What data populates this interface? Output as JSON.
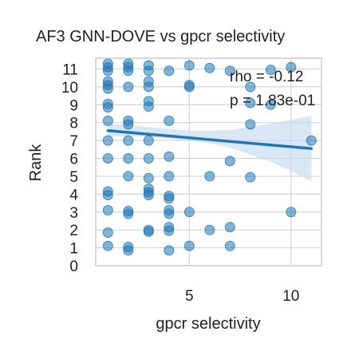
{
  "chart_data": {
    "type": "scatter",
    "title": "AF3 GNN-DOVE vs gpcr selectivity",
    "xlabel": "gpcr selectivity",
    "ylabel": "Rank",
    "xlim": [
      0.4,
      11.5
    ],
    "ylim": [
      0,
      11.6
    ],
    "x_ticks": [
      5,
      10
    ],
    "y_ticks": [
      0,
      1,
      2,
      3,
      4,
      5,
      6,
      7,
      8,
      9,
      10,
      11
    ],
    "grid": true,
    "colors": {
      "points": "#1f77b4",
      "regression_line": "#1f77b4",
      "confidence_band": "#c6dbef"
    },
    "annotations": {
      "rho": "rho = -0.12",
      "p": "p = 1.83e-01"
    },
    "regression": {
      "x_start": 1,
      "y_start": 7.55,
      "x_end": 11,
      "y_end": 6.55
    },
    "confidence_band": {
      "x": [
        1,
        2,
        3,
        4,
        5,
        6,
        7,
        8,
        9,
        10,
        11
      ],
      "upper": [
        7.95,
        7.85,
        7.75,
        7.65,
        7.55,
        7.55,
        7.6,
        7.75,
        7.95,
        8.15,
        8.4
      ],
      "lower": [
        7.2,
        7.25,
        7.2,
        7.1,
        7.0,
        6.85,
        6.6,
        6.2,
        5.8,
        5.3,
        4.7
      ]
    },
    "points": [
      {
        "x": 1,
        "y": 11.3
      },
      {
        "x": 1,
        "y": 11.1
      },
      {
        "x": 1,
        "y": 10.9
      },
      {
        "x": 2,
        "y": 11.3
      },
      {
        "x": 2,
        "y": 11.1
      },
      {
        "x": 2,
        "y": 10.9
      },
      {
        "x": 3,
        "y": 11.2
      },
      {
        "x": 3,
        "y": 10.9
      },
      {
        "x": 4,
        "y": 10.9
      },
      {
        "x": 5,
        "y": 11.2
      },
      {
        "x": 6,
        "y": 11.05
      },
      {
        "x": 7,
        "y": 10.9
      },
      {
        "x": 9,
        "y": 10.95
      },
      {
        "x": 10,
        "y": 11.1
      },
      {
        "x": 1,
        "y": 10.3
      },
      {
        "x": 1,
        "y": 10.1
      },
      {
        "x": 1,
        "y": 9.9
      },
      {
        "x": 2,
        "y": 10.0
      },
      {
        "x": 3,
        "y": 10.3
      },
      {
        "x": 3,
        "y": 10.0
      },
      {
        "x": 5,
        "y": 10.1
      },
      {
        "x": 5,
        "y": 10.0
      },
      {
        "x": 8,
        "y": 10.0
      },
      {
        "x": 1,
        "y": 9.05
      },
      {
        "x": 1,
        "y": 8.85
      },
      {
        "x": 3,
        "y": 9.2
      },
      {
        "x": 3,
        "y": 8.9
      },
      {
        "x": 8,
        "y": 9.1
      },
      {
        "x": 9,
        "y": 9.0
      },
      {
        "x": 1,
        "y": 8.1
      },
      {
        "x": 2,
        "y": 8.1
      },
      {
        "x": 2,
        "y": 7.9
      },
      {
        "x": 4,
        "y": 8.1
      },
      {
        "x": 8,
        "y": 7.9
      },
      {
        "x": 1,
        "y": 7.0
      },
      {
        "x": 2,
        "y": 7.0
      },
      {
        "x": 3,
        "y": 7.0
      },
      {
        "x": 11,
        "y": 7.0
      },
      {
        "x": 1,
        "y": 6.0
      },
      {
        "x": 2,
        "y": 6.0
      },
      {
        "x": 3,
        "y": 6.0
      },
      {
        "x": 4,
        "y": 6.1
      },
      {
        "x": 7,
        "y": 5.85
      },
      {
        "x": 2,
        "y": 5.0
      },
      {
        "x": 3,
        "y": 4.9
      },
      {
        "x": 4,
        "y": 5.0
      },
      {
        "x": 6,
        "y": 5.0
      },
      {
        "x": 8,
        "y": 4.95
      },
      {
        "x": 1,
        "y": 4.15
      },
      {
        "x": 1,
        "y": 3.95
      },
      {
        "x": 3,
        "y": 4.3
      },
      {
        "x": 3,
        "y": 4.1
      },
      {
        "x": 3,
        "y": 3.95
      },
      {
        "x": 4,
        "y": 3.9
      },
      {
        "x": 4,
        "y": 3.75
      },
      {
        "x": 1,
        "y": 3.1
      },
      {
        "x": 2,
        "y": 3.05
      },
      {
        "x": 2,
        "y": 2.9
      },
      {
        "x": 4,
        "y": 3.1
      },
      {
        "x": 4,
        "y": 2.9
      },
      {
        "x": 5,
        "y": 3.0
      },
      {
        "x": 10,
        "y": 3.0
      },
      {
        "x": 1,
        "y": 1.85
      },
      {
        "x": 3,
        "y": 2.0
      },
      {
        "x": 3,
        "y": 1.9
      },
      {
        "x": 4,
        "y": 2.15
      },
      {
        "x": 4,
        "y": 1.95
      },
      {
        "x": 6,
        "y": 2.0
      },
      {
        "x": 7,
        "y": 2.15
      },
      {
        "x": 1,
        "y": 1.1
      },
      {
        "x": 2,
        "y": 1.05
      },
      {
        "x": 2,
        "y": 0.85
      },
      {
        "x": 4,
        "y": 0.85
      },
      {
        "x": 5,
        "y": 1.1
      },
      {
        "x": 7,
        "y": 1.1
      }
    ]
  }
}
